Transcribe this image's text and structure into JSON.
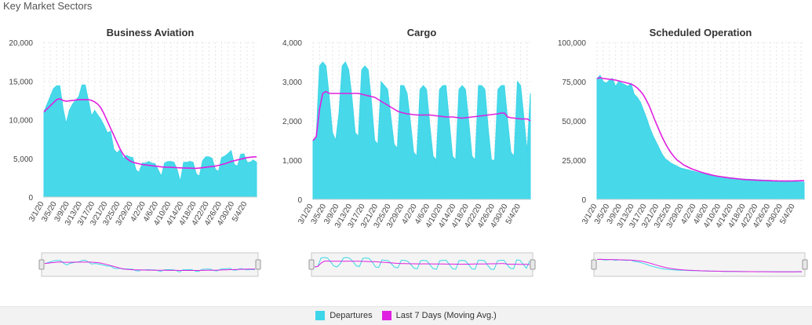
{
  "page_title": "Key Market Sectors",
  "colors": {
    "departures": "#3dd6e8",
    "moving_avg": "#e020e0"
  },
  "legend": {
    "departures": "Departures",
    "moving_avg": "Last 7 Days (Moving Avg.)"
  },
  "x_dates": [
    "3/1/20",
    "3/2/20",
    "3/3/20",
    "3/4/20",
    "3/5/20",
    "3/6/20",
    "3/7/20",
    "3/8/20",
    "3/9/20",
    "3/10/20",
    "3/11/20",
    "3/12/20",
    "3/13/20",
    "3/14/20",
    "3/15/20",
    "3/16/20",
    "3/17/20",
    "3/18/20",
    "3/19/20",
    "3/20/20",
    "3/21/20",
    "3/22/20",
    "3/23/20",
    "3/24/20",
    "3/25/20",
    "3/26/20",
    "3/27/20",
    "3/28/20",
    "3/29/20",
    "3/30/20",
    "3/31/20",
    "4/1/20",
    "4/2/20",
    "4/3/20",
    "4/4/20",
    "4/5/20",
    "4/6/20",
    "4/7/20",
    "4/8/20",
    "4/9/20",
    "4/10/20",
    "4/11/20",
    "4/12/20",
    "4/13/20",
    "4/14/20",
    "4/15/20",
    "4/16/20",
    "4/17/20",
    "4/18/20",
    "4/19/20",
    "4/20/20",
    "4/21/20",
    "4/22/20",
    "4/23/20",
    "4/24/20",
    "4/25/20",
    "4/26/20",
    "4/27/20",
    "4/28/20",
    "4/29/20",
    "4/30/20",
    "5/1/20",
    "5/2/20",
    "5/3/20",
    "5/4/20",
    "5/5/20",
    "5/6/20",
    "5/7/20"
  ],
  "chart_data": [
    {
      "type": "area",
      "title": "Business Aviation",
      "ylim": [
        0,
        20000
      ],
      "yticks": [
        0,
        5000,
        10000,
        15000,
        20000
      ],
      "yticklabels": [
        "0",
        "5,000",
        "10,000",
        "15,000",
        "20,000"
      ],
      "xticklabels": [
        "3/1/20",
        "3/5/20",
        "3/9/20",
        "3/13/20",
        "3/17/20",
        "3/21/20",
        "3/25/20",
        "3/29/20",
        "4/2/20",
        "4/6/20",
        "4/10/20",
        "4/14/20",
        "4/18/20",
        "4/22/20",
        "4/26/20",
        "4/30/20",
        "5/4/20"
      ],
      "series": [
        {
          "name": "Departures",
          "values": [
            11000,
            12000,
            13000,
            14000,
            14400,
            14400,
            11500,
            9500,
            11200,
            12000,
            12500,
            13000,
            14500,
            14500,
            12500,
            10500,
            11200,
            10600,
            10000,
            9200,
            8300,
            8500,
            6200,
            5700,
            6100,
            5000,
            5400,
            5200,
            5100,
            3500,
            3200,
            4400,
            4400,
            4600,
            4400,
            4300,
            3500,
            2700,
            4400,
            4600,
            4600,
            4500,
            3500,
            2000,
            4500,
            4500,
            4600,
            4500,
            3000,
            2700,
            4700,
            5200,
            5200,
            5000,
            3600,
            3300,
            5100,
            5300,
            5600,
            6000,
            4200,
            4000,
            5500,
            5600,
            4500,
            4500,
            4800,
            4500
          ]
        },
        {
          "name": "Last 7 Days (Moving Avg.)",
          "values": [
            11000,
            11400,
            11800,
            12200,
            12600,
            12700,
            12500,
            12400,
            12450,
            12500,
            12550,
            12600,
            12600,
            12600,
            12600,
            12500,
            12300,
            12000,
            11500,
            10700,
            9800,
            8900,
            8000,
            7100,
            6200,
            5500,
            5000,
            4700,
            4500,
            4400,
            4300,
            4200,
            4150,
            4100,
            4050,
            4000,
            3950,
            3900,
            3880,
            3860,
            3850,
            3830,
            3800,
            3780,
            3760,
            3750,
            3740,
            3730,
            3720,
            3750,
            3800,
            3850,
            3900,
            3950,
            4000,
            4100,
            4200,
            4300,
            4450,
            4600,
            4700,
            4800,
            4900,
            5000,
            5100,
            5150,
            5200,
            5200
          ]
        }
      ]
    },
    {
      "type": "area",
      "title": "Cargo",
      "ylim": [
        0,
        4000
      ],
      "yticks": [
        0,
        1000,
        2000,
        3000,
        4000
      ],
      "yticklabels": [
        "0",
        "1,000",
        "2,000",
        "3,000",
        "4,000"
      ],
      "xticklabels": [
        "3/1/20",
        "3/5/20",
        "3/9/20",
        "3/13/20",
        "3/17/20",
        "3/21/20",
        "3/25/20",
        "3/29/20",
        "4/2/20",
        "4/6/20",
        "4/10/20",
        "4/14/20",
        "4/18/20",
        "4/22/20",
        "4/26/20",
        "4/30/20",
        "5/4/20"
      ],
      "series": [
        {
          "name": "Departures",
          "values": [
            1500,
            1600,
            3400,
            3500,
            3400,
            2600,
            1700,
            1500,
            2200,
            3400,
            3500,
            3300,
            2600,
            1700,
            1600,
            3300,
            3400,
            3300,
            2500,
            1500,
            1400,
            3000,
            2900,
            2800,
            2100,
            1400,
            1300,
            2900,
            2900,
            2700,
            2000,
            1200,
            1100,
            2800,
            2900,
            2800,
            1900,
            1100,
            1000,
            2800,
            2900,
            2900,
            2000,
            1100,
            1000,
            2800,
            2900,
            2800,
            2000,
            1100,
            1000,
            2900,
            2900,
            2800,
            1800,
            1000,
            1000,
            2800,
            2900,
            2900,
            2000,
            1200,
            1100,
            3000,
            2900,
            2100,
            1200,
            2700
          ]
        },
        {
          "name": "Last 7 Days (Moving Avg.)",
          "values": [
            1500,
            1600,
            2300,
            2700,
            2750,
            2700,
            2700,
            2700,
            2700,
            2700,
            2700,
            2700,
            2700,
            2700,
            2700,
            2680,
            2660,
            2640,
            2620,
            2600,
            2550,
            2500,
            2450,
            2400,
            2350,
            2300,
            2250,
            2220,
            2200,
            2180,
            2170,
            2160,
            2150,
            2150,
            2150,
            2150,
            2150,
            2140,
            2130,
            2120,
            2110,
            2100,
            2100,
            2100,
            2090,
            2080,
            2070,
            2080,
            2090,
            2100,
            2110,
            2120,
            2130,
            2140,
            2150,
            2160,
            2170,
            2180,
            2200,
            2200,
            2100,
            2080,
            2070,
            2060,
            2050,
            2050,
            2050,
            2000
          ]
        }
      ]
    },
    {
      "type": "area",
      "title": "Scheduled Operation",
      "ylim": [
        0,
        100000
      ],
      "yticks": [
        0,
        25000,
        50000,
        75000,
        100000
      ],
      "yticklabels": [
        "0",
        "25,000",
        "50,000",
        "75,000",
        "100,000"
      ],
      "xticklabels": [
        "3/1/20",
        "3/5/20",
        "3/9/20",
        "3/13/20",
        "3/17/20",
        "3/21/20",
        "3/25/20",
        "3/29/20",
        "4/2/20",
        "4/6/20",
        "4/10/20",
        "4/14/20",
        "4/18/20",
        "4/22/20",
        "4/26/20",
        "4/30/20",
        "5/4/20"
      ],
      "series": [
        {
          "name": "Departures",
          "values": [
            77000,
            79000,
            75000,
            74000,
            76000,
            77000,
            72000,
            75000,
            74000,
            73000,
            72000,
            74000,
            67000,
            65000,
            62000,
            57000,
            52000,
            46000,
            41000,
            37000,
            33000,
            29000,
            26000,
            24500,
            23000,
            22000,
            21000,
            20000,
            19500,
            19000,
            18500,
            18000,
            17500,
            17000,
            16500,
            16000,
            15500,
            15000,
            14800,
            14600,
            14400,
            14200,
            14000,
            13800,
            13600,
            13400,
            13200,
            13000,
            12900,
            12800,
            12700,
            12600,
            12500,
            12400,
            12300,
            12200,
            12100,
            12000,
            11900,
            11800,
            11700,
            11600,
            11500,
            11400,
            11300,
            11200,
            11100,
            11000
          ]
        },
        {
          "name": "Last 7 Days (Moving Avg.)",
          "values": [
            77000,
            77500,
            77000,
            76800,
            76500,
            76300,
            76000,
            75500,
            75000,
            74500,
            74000,
            73500,
            72500,
            71000,
            69000,
            66500,
            63000,
            59000,
            54000,
            49000,
            44500,
            40000,
            36000,
            32500,
            29500,
            27000,
            25000,
            23500,
            22000,
            21000,
            20000,
            19200,
            18500,
            17800,
            17200,
            16600,
            16100,
            15600,
            15200,
            14800,
            14500,
            14200,
            13900,
            13600,
            13400,
            13200,
            13000,
            12800,
            12600,
            12500,
            12400,
            12300,
            12200,
            12100,
            12000,
            11950,
            11900,
            11850,
            11800,
            11750,
            11700,
            11700,
            11700,
            11750,
            11800,
            11850,
            11900,
            11950
          ]
        }
      ]
    }
  ]
}
